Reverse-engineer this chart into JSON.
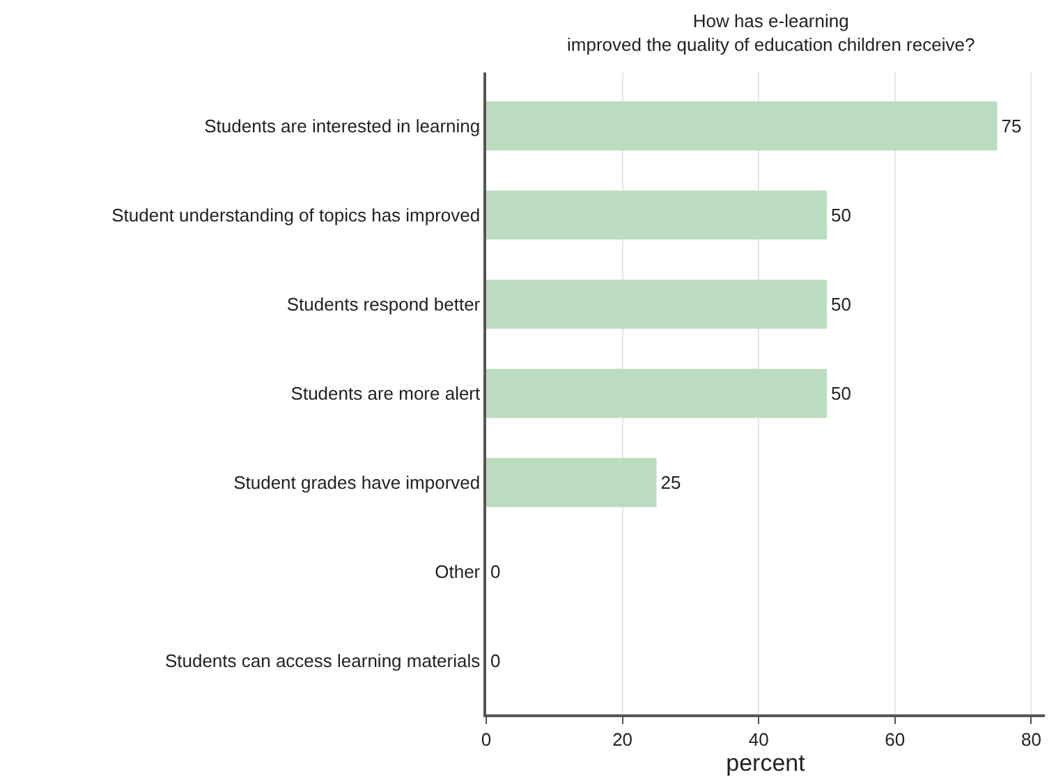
{
  "chart_data": {
    "type": "bar",
    "orientation": "horizontal",
    "title": "How has e-learning\nimproved the quality of education children receive?",
    "xlabel": "percent",
    "categories": [
      "Students are interested in learning",
      "Student understanding of topics has improved",
      "Students respond better",
      "Students are more alert",
      "Student grades have imporved",
      "Other",
      "Students can access learning materials"
    ],
    "values": [
      75,
      50,
      50,
      50,
      25,
      0,
      0
    ],
    "color": "#bcdcbf",
    "xlim": [
      0,
      82
    ],
    "xticks": [
      0,
      20,
      40,
      60,
      80
    ],
    "grid": "x",
    "data_labels": true,
    "legend": false
  }
}
